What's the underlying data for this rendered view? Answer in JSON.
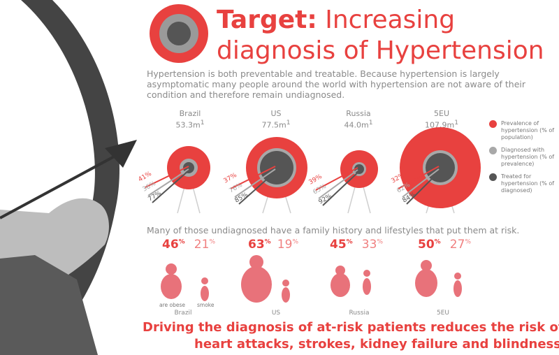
{
  "title": {
    "bold": "Target:",
    "rest": "Increasing",
    "line2": "diagnosis of Hypertension"
  },
  "intro": "Hypertension is both preventable and treatable. Because hypertension is largely asymptomatic many people around the world with hypertension are not aware of their condition and therefore remain undiagnosed.",
  "countries": [
    {
      "name": "Brazil",
      "population": "53.3m",
      "sup": "1",
      "prevalence": "41%",
      "diagnosed": "36%",
      "treated": "77%"
    },
    {
      "name": "US",
      "population": "77.5m",
      "sup": "1",
      "prevalence": "37%",
      "diagnosed": "76%",
      "treated": "85%"
    },
    {
      "name": "Russia",
      "population": "44.0m",
      "sup": "1",
      "prevalence": "39%",
      "diagnosed": "63%",
      "treated": "92%"
    },
    {
      "name": "5EU",
      "population": "107.9m",
      "sup": "1",
      "prevalence": "32%",
      "diagnosed": "62%",
      "treated": "84%"
    }
  ],
  "legend": [
    {
      "label": "Prevalence of hypertension (% of population)",
      "color": "#e8413f"
    },
    {
      "label": "Diagnosed with hypertension (% of prevalence)",
      "color": "#a8a8a8"
    },
    {
      "label": "Treated for hypertension (% of diagnosed)",
      "color": "#555555"
    }
  ],
  "family_text": "Many of those undiagnosed have a family history and lifestyles that put them at risk.",
  "risk": [
    {
      "country": "Brazil",
      "obese": "46",
      "smoke": "21"
    },
    {
      "country": "US",
      "obese": "63",
      "smoke": "19"
    },
    {
      "country": "Russia",
      "obese": "45",
      "smoke": "33"
    },
    {
      "country": "5EU",
      "obese": "50",
      "smoke": "27"
    }
  ],
  "percent_sign": "%",
  "labels": {
    "obese": "are obese",
    "smoke": "smoke"
  },
  "footer": {
    "line1": "Driving the diagnosis of at-risk patients reduces the risk of",
    "line2": "heart attacks, strokes, kidney failure and blindness."
  },
  "colors": {
    "red": "#e8413f",
    "light_red": "#f08080",
    "grey": "#a8a8a8",
    "dark_grey": "#555555"
  }
}
